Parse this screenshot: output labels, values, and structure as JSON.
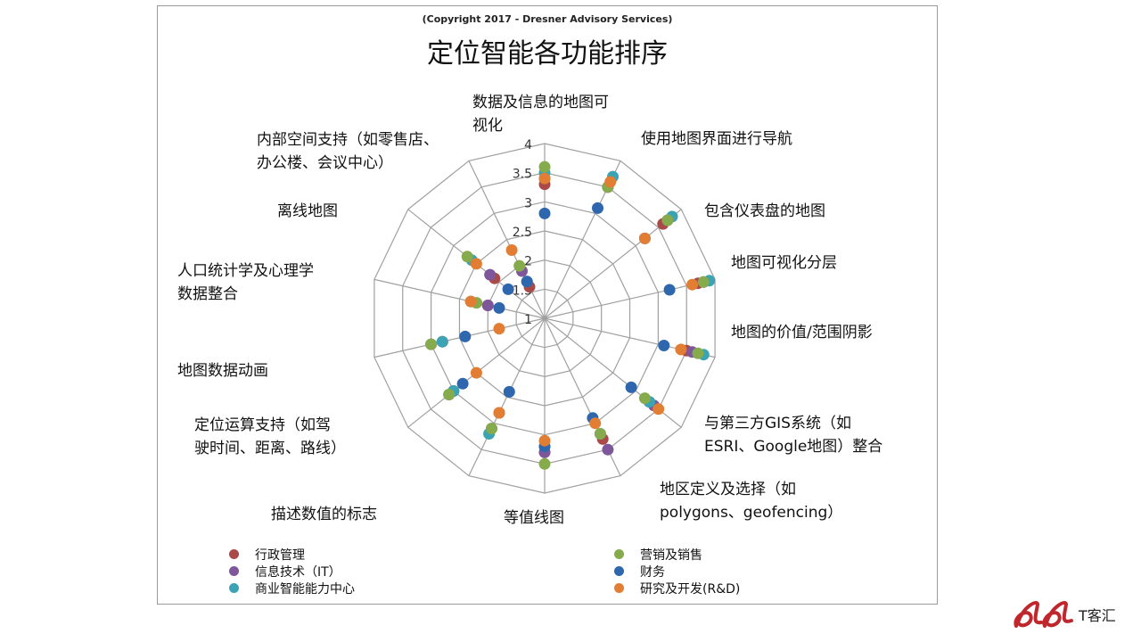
{
  "copyright": "(Copyright 2017 - Dresner Advisory Services)",
  "title": "定位智能各功能排序",
  "brand": {
    "text": "T客汇",
    "icon": "logo-icon",
    "color": "#c0272d"
  },
  "chart_data": {
    "type": "radar",
    "title": "定位智能各功能排序",
    "r_ticks": [
      "1",
      "1.5",
      "2",
      "2.5",
      "3",
      "3.5",
      "4"
    ],
    "rlim": [
      1,
      4
    ],
    "grid": true,
    "legend_position": "bottom",
    "categories": [
      [
        "数据及信息的地图可",
        "视化"
      ],
      [
        "使用地图界面进行导航"
      ],
      [
        "包含仪表盘的地图"
      ],
      [
        "地图可视化分层"
      ],
      [
        "地图的价值/范围阴影"
      ],
      [
        "与第三方GIS系统（如",
        "ESRI、Google地图）整合"
      ],
      [
        "地区定义及选择（如",
        "polygons、geofencing）"
      ],
      [
        "等值线图"
      ],
      [
        "描述数值的标志"
      ],
      [
        "定位运算支持（如驾",
        "驶时间、距离、路线）"
      ],
      [
        "地图数据动画"
      ],
      [
        "人口统计学及心理学",
        "数据整合"
      ],
      [
        "离线地图"
      ],
      [
        "内部空间支持（如零售店、",
        "办公楼、会议中心）"
      ]
    ],
    "series": [
      {
        "name": "行政管理",
        "color": "#a94a48",
        "values": [
          3.3,
          3.5,
          3.6,
          3.7,
          3.5,
          3.3,
          3.3,
          3.3,
          2.8,
          3.0,
          2.8,
          2.0,
          2.1,
          1.6
        ]
      },
      {
        "name": "信息技术（IT）",
        "color": "#7e569a",
        "values": [
          3.4,
          3.5,
          3.7,
          3.8,
          3.6,
          3.4,
          3.5,
          3.3,
          3.1,
          3.1,
          3.0,
          2.0,
          2.2,
          1.9
        ]
      },
      {
        "name": "商业智能能力中心",
        "color": "#3ba3b3",
        "values": [
          3.5,
          3.7,
          3.8,
          3.9,
          3.8,
          3.3,
          3.2,
          3.2,
          3.2,
          3.0,
          2.8,
          2.3,
          2.6,
          1.7
        ]
      },
      {
        "name": "营销及销售",
        "color": "#86ab4c",
        "values": [
          3.6,
          3.5,
          3.7,
          3.8,
          3.7,
          3.2,
          3.2,
          3.5,
          3.1,
          3.1,
          3.0,
          2.2,
          2.7,
          2.0
        ]
      },
      {
        "name": "财务",
        "color": "#2f67ae",
        "values": [
          2.8,
          3.1,
          3.2,
          3.2,
          3.1,
          2.9,
          2.9,
          3.2,
          2.4,
          2.8,
          2.4,
          1.8,
          1.8,
          1.7
        ]
      },
      {
        "name": "研究及开发(R&D)",
        "color": "#e27d34",
        "values": [
          3.4,
          3.6,
          3.2,
          3.6,
          3.4,
          3.5,
          3.0,
          3.1,
          2.8,
          2.5,
          1.8,
          2.3,
          2.5,
          2.3
        ]
      }
    ]
  }
}
